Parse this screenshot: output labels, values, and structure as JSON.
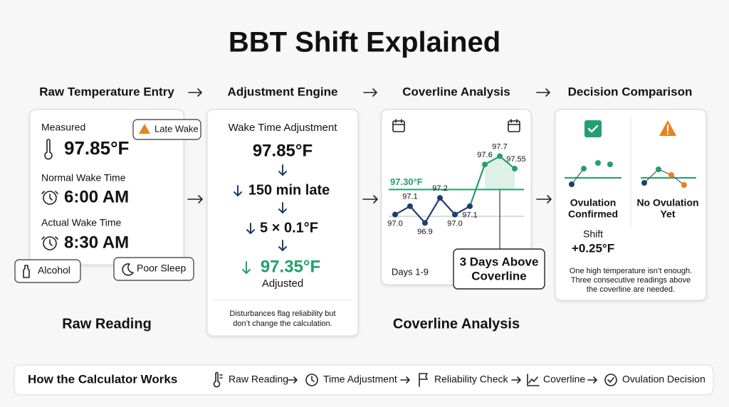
{
  "title": "BBT Shift Explained",
  "steps": [
    "Raw Temperature Entry",
    "Adjustment Engine",
    "Coverline Analysis",
    "Decision Comparison"
  ],
  "raw": {
    "measured_label": "Measured",
    "measured": "97.85°F",
    "flag": "Late Wake",
    "normal_label": "Normal Wake Time",
    "normal": "6:00 AM",
    "actual_label": "Actual Wake Time",
    "actual": "8:30 AM",
    "tags": [
      "Alcohol",
      "Poor Sleep"
    ],
    "caption": "Raw Reading"
  },
  "adjust": {
    "heading": "Wake Time Adjustment",
    "start": "97.85°F",
    "late": "150 min late",
    "rate": "5 × 0.1°F",
    "result": "97.35°F",
    "result_label": "Adjusted",
    "note": [
      "Disturbances flag reliability but",
      "don’t change the calculation."
    ]
  },
  "coverline": {
    "chart_data": {
      "type": "line",
      "coverline": 97.3,
      "coverline_label": "97.30°F",
      "values": [
        97.0,
        97.1,
        96.9,
        97.2,
        97.0,
        97.1,
        97.6,
        97.7,
        97.55
      ],
      "value_labels": [
        "97.0",
        "97.1",
        "96.9",
        "97.2",
        "97.0",
        "97.1",
        "97.6",
        "97.7",
        "97.55"
      ],
      "ylim": [
        96.8,
        97.9
      ],
      "colors": {
        "below": "#1d3f6e",
        "above": "#22a06b",
        "line": "#22a06b"
      },
      "x_label": "Days 1-9"
    },
    "callout": [
      "3 Days Above",
      "Coverline"
    ],
    "caption": "Coverline Analysis"
  },
  "decision": {
    "confirmed": [
      "Ovulation",
      "Confirmed"
    ],
    "shift_label": "Shift",
    "shift": "+0.25°F",
    "pending": [
      "No Ovulation",
      "Yet"
    ],
    "note": [
      "One high temperature isn’t enough.",
      "Three consecutive readings above",
      "the coverline are needed."
    ]
  },
  "footer": {
    "title": "How the Calculator Works",
    "items": [
      "Raw Reading",
      "Time Adjustment",
      "Reliability Check",
      "Coverline",
      "Ovulation Decision"
    ]
  }
}
